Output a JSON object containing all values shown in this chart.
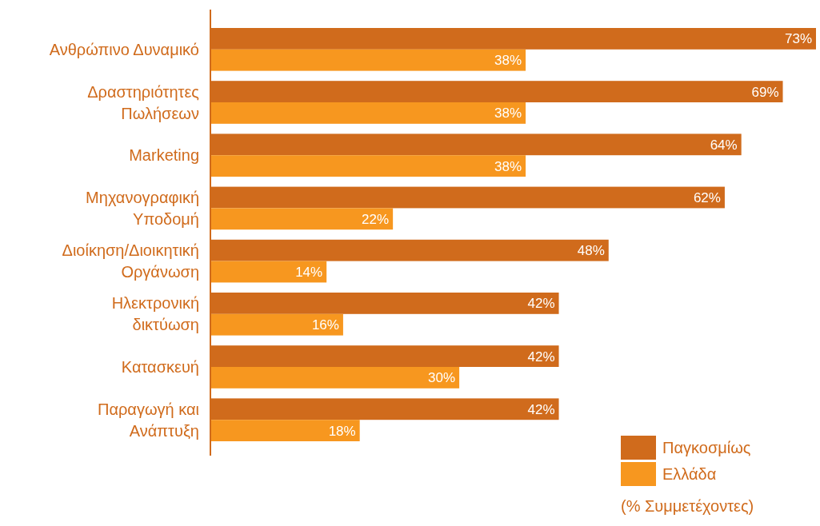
{
  "chart_data": {
    "type": "bar",
    "orientation": "horizontal",
    "categories": [
      "Ανθρώπινο Δυναμικό",
      "Δραστηριότητες Πωλήσεων",
      "Marketing",
      "Μηχανογραφική Υποδομή",
      "Διοίκηση/Διοικητική Οργάνωση",
      "Ηλεκτρονική δικτύωση",
      "Κατασκευή",
      "Παραγωγή και Ανάπτυξη"
    ],
    "series": [
      {
        "name": "Παγκοσμίως",
        "color": "#d06b1c",
        "values": [
          73,
          69,
          64,
          62,
          48,
          42,
          42,
          42
        ],
        "value_labels": [
          "73%",
          "69%",
          "64%",
          "62%",
          "48%",
          "42%",
          "42%",
          "42%"
        ]
      },
      {
        "name": "Ελλάδα",
        "color": "#f7971f",
        "values": [
          38,
          38,
          38,
          22,
          14,
          16,
          30,
          18
        ],
        "value_labels": [
          "38%",
          "38%",
          "38%",
          "22%",
          "14%",
          "16%",
          "30%",
          "18%"
        ]
      }
    ],
    "legend": "bottom right",
    "annotations": [
      "(% Συμμετέχοντες)"
    ]
  }
}
